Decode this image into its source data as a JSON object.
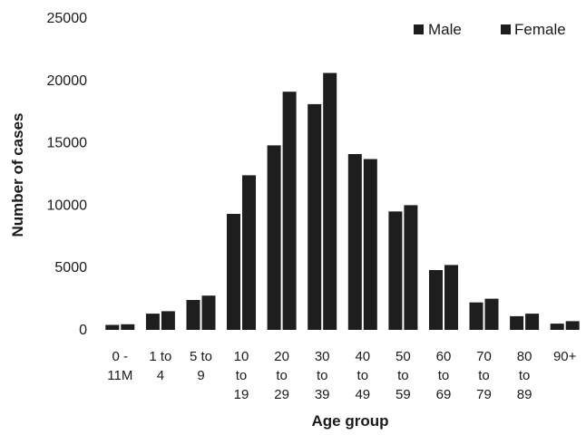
{
  "chart_data": {
    "type": "bar",
    "title": "",
    "xlabel": "Age group",
    "ylabel": "Number of cases",
    "ylim": [
      0,
      25000
    ],
    "yticks": [
      "0",
      "5000",
      "10000",
      "15000",
      "20000",
      "25000"
    ],
    "grid": false,
    "legend_position": "top-right",
    "categories": [
      [
        "0 -",
        "11M"
      ],
      [
        "1 to",
        "4"
      ],
      [
        "5 to",
        "9"
      ],
      [
        "10",
        "to",
        "19"
      ],
      [
        "20",
        "to",
        "29"
      ],
      [
        "30",
        "to",
        "39"
      ],
      [
        "40",
        "to",
        "49"
      ],
      [
        "50",
        "to",
        "59"
      ],
      [
        "60",
        "to",
        "69"
      ],
      [
        "70",
        "to",
        "79"
      ],
      [
        "80",
        "to",
        "89"
      ],
      [
        "90+"
      ]
    ],
    "series": [
      {
        "name": "Male",
        "color": "#1e1e1e",
        "values": [
          400,
          1300,
          2400,
          9300,
          14800,
          18100,
          14100,
          9500,
          4800,
          2200,
          1100,
          500
        ]
      },
      {
        "name": "Female",
        "color": "#1e1e1e",
        "values": [
          450,
          1500,
          2750,
          12400,
          19100,
          20600,
          13700,
          10000,
          5200,
          2500,
          1300,
          700
        ]
      }
    ]
  }
}
